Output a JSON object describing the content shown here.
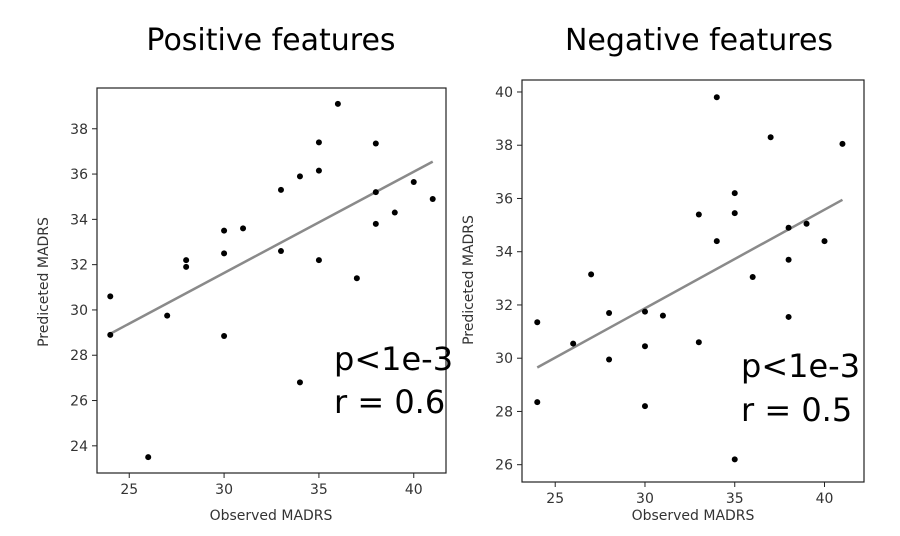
{
  "chart_data": [
    {
      "type": "scatter",
      "title": "Positive features",
      "xlabel": "Observed MADRS",
      "ylabel": "Prediceted MADRS",
      "xlim": [
        23.3,
        41.7
      ],
      "ylim": [
        22.8,
        39.8
      ],
      "xticks": [
        25,
        30,
        35,
        40
      ],
      "yticks": [
        24,
        26,
        28,
        30,
        32,
        34,
        36,
        38
      ],
      "points": [
        {
          "x": 24,
          "y": 30.6
        },
        {
          "x": 24,
          "y": 28.9
        },
        {
          "x": 26,
          "y": 23.5
        },
        {
          "x": 27,
          "y": 29.75
        },
        {
          "x": 28,
          "y": 32.2
        },
        {
          "x": 28,
          "y": 31.9
        },
        {
          "x": 30,
          "y": 33.5
        },
        {
          "x": 30,
          "y": 32.5
        },
        {
          "x": 30,
          "y": 28.85
        },
        {
          "x": 31,
          "y": 33.6
        },
        {
          "x": 33,
          "y": 35.3
        },
        {
          "x": 33,
          "y": 32.6
        },
        {
          "x": 34,
          "y": 35.9
        },
        {
          "x": 34,
          "y": 26.8
        },
        {
          "x": 35,
          "y": 37.4
        },
        {
          "x": 35,
          "y": 36.15
        },
        {
          "x": 35,
          "y": 32.2
        },
        {
          "x": 36,
          "y": 39.1
        },
        {
          "x": 37,
          "y": 31.4
        },
        {
          "x": 38,
          "y": 37.35
        },
        {
          "x": 38,
          "y": 35.2
        },
        {
          "x": 38,
          "y": 33.8
        },
        {
          "x": 39,
          "y": 34.3
        },
        {
          "x": 40,
          "y": 35.65
        },
        {
          "x": 41,
          "y": 34.9
        }
      ],
      "fit_line": {
        "x": [
          24,
          41
        ],
        "y": [
          28.95,
          36.55
        ]
      },
      "annotations": [
        "p<1e-3",
        "r = 0.6"
      ]
    },
    {
      "type": "scatter",
      "title": "Negative features",
      "xlabel": "Observed MADRS",
      "ylabel": "Prediceted MADRS",
      "xlim": [
        23.15,
        42.2
      ],
      "ylim": [
        25.35,
        40.45
      ],
      "xticks": [
        25,
        30,
        35,
        40
      ],
      "yticks": [
        26,
        28,
        30,
        32,
        34,
        36,
        38,
        40
      ],
      "points": [
        {
          "x": 24,
          "y": 31.35
        },
        {
          "x": 24,
          "y": 28.35
        },
        {
          "x": 26,
          "y": 30.55
        },
        {
          "x": 27,
          "y": 33.15
        },
        {
          "x": 28,
          "y": 31.7
        },
        {
          "x": 28,
          "y": 29.95
        },
        {
          "x": 30,
          "y": 31.75
        },
        {
          "x": 30,
          "y": 30.45
        },
        {
          "x": 30,
          "y": 28.2
        },
        {
          "x": 31,
          "y": 31.6
        },
        {
          "x": 33,
          "y": 35.4
        },
        {
          "x": 33,
          "y": 30.6
        },
        {
          "x": 34,
          "y": 39.8
        },
        {
          "x": 34,
          "y": 34.4
        },
        {
          "x": 35,
          "y": 36.2
        },
        {
          "x": 35,
          "y": 35.45
        },
        {
          "x": 35,
          "y": 26.2
        },
        {
          "x": 36,
          "y": 33.05
        },
        {
          "x": 37,
          "y": 38.3
        },
        {
          "x": 38,
          "y": 34.9
        },
        {
          "x": 38,
          "y": 33.7
        },
        {
          "x": 38,
          "y": 31.55
        },
        {
          "x": 39,
          "y": 35.05
        },
        {
          "x": 40,
          "y": 34.4
        },
        {
          "x": 41,
          "y": 38.05
        }
      ],
      "fit_line": {
        "x": [
          24,
          41
        ],
        "y": [
          29.65,
          35.95
        ]
      },
      "annotations": [
        "p<1e-3",
        "r = 0.5"
      ]
    }
  ]
}
